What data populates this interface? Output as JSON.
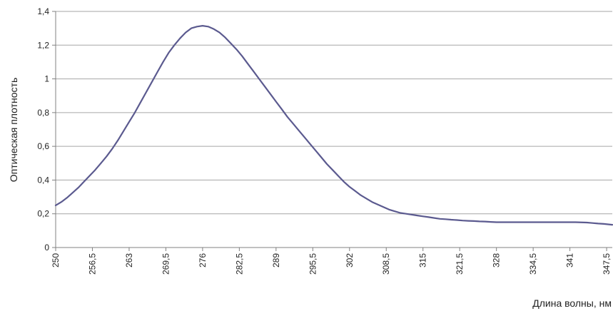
{
  "chart_data": {
    "type": "line",
    "title": "",
    "xlabel": "Длина волны, нм",
    "ylabel": "Оптическая плотность",
    "xlim": [
      250,
      348.5
    ],
    "ylim": [
      0,
      1.4
    ],
    "grid": "horizontal",
    "legend": "none",
    "line_color": "#5b5a8f",
    "x_ticks": [
      250,
      256.5,
      263,
      269.5,
      276,
      282.5,
      289,
      295.5,
      302,
      308.5,
      315,
      321.5,
      328,
      334.5,
      341,
      347.5
    ],
    "x_tick_labels": [
      "250",
      "256,5",
      "263",
      "269,5",
      "276",
      "282,5",
      "289",
      "295,5",
      "302",
      "308,5",
      "315",
      "321,5",
      "328",
      "334,5",
      "341",
      "347,5"
    ],
    "y_ticks": [
      0,
      0.2,
      0.4,
      0.6,
      0.8,
      1,
      1.2,
      1.4
    ],
    "y_tick_labels": [
      "0",
      "0,2",
      "0,4",
      "0,6",
      "0,8",
      "1",
      "1,2",
      "1,4"
    ],
    "series": [
      {
        "x": [
          250,
          251,
          252,
          253,
          254,
          255,
          256,
          257,
          258,
          259,
          260,
          261,
          262,
          263,
          264,
          265,
          266,
          267,
          268,
          269,
          270,
          271,
          272,
          273,
          274,
          275,
          276,
          277,
          278,
          279,
          280,
          281,
          282,
          283,
          284,
          285,
          286,
          287,
          288,
          289,
          290,
          291,
          292,
          293,
          294,
          295,
          296,
          297,
          298,
          299,
          300,
          301,
          302,
          303,
          304,
          305,
          306,
          307,
          308,
          309,
          310,
          311,
          312,
          313,
          314,
          315,
          316,
          317,
          318,
          319,
          320,
          321,
          322,
          323,
          324,
          325,
          326,
          327,
          328,
          330,
          332,
          334,
          336,
          338,
          340,
          342,
          344,
          345,
          346,
          347,
          348.5
        ],
        "y": [
          0.25,
          0.27,
          0.295,
          0.325,
          0.355,
          0.39,
          0.425,
          0.46,
          0.5,
          0.54,
          0.585,
          0.635,
          0.69,
          0.745,
          0.8,
          0.86,
          0.92,
          0.98,
          1.04,
          1.1,
          1.155,
          1.2,
          1.24,
          1.275,
          1.3,
          1.31,
          1.315,
          1.31,
          1.295,
          1.275,
          1.245,
          1.21,
          1.175,
          1.135,
          1.09,
          1.045,
          1.0,
          0.955,
          0.91,
          0.865,
          0.82,
          0.775,
          0.735,
          0.695,
          0.655,
          0.615,
          0.575,
          0.535,
          0.495,
          0.46,
          0.425,
          0.39,
          0.36,
          0.335,
          0.31,
          0.29,
          0.27,
          0.255,
          0.24,
          0.225,
          0.215,
          0.205,
          0.2,
          0.195,
          0.19,
          0.185,
          0.18,
          0.175,
          0.17,
          0.168,
          0.165,
          0.163,
          0.16,
          0.158,
          0.157,
          0.155,
          0.154,
          0.152,
          0.15,
          0.15,
          0.15,
          0.15,
          0.15,
          0.15,
          0.15,
          0.15,
          0.148,
          0.145,
          0.142,
          0.14,
          0.135
        ]
      }
    ]
  }
}
